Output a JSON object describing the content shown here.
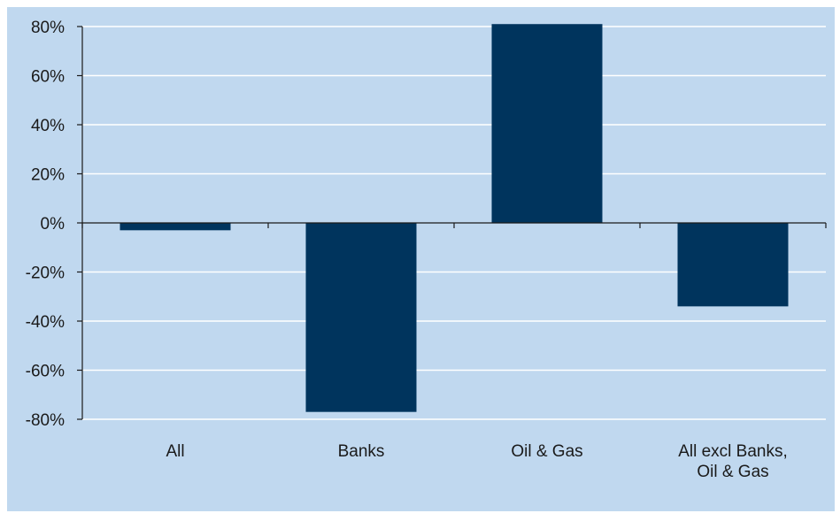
{
  "chart_data": {
    "type": "bar",
    "title": "",
    "xlabel": "",
    "ylabel": "",
    "categories": [
      [
        "All"
      ],
      [
        "Banks"
      ],
      [
        "Oil & Gas"
      ],
      [
        "All excl Banks,",
        "Oil & Gas"
      ]
    ],
    "values": [
      -3,
      -77,
      81,
      -34
    ],
    "ylim": [
      -80,
      80
    ],
    "yticks": [
      80,
      60,
      40,
      20,
      0,
      -20,
      -40,
      -60,
      -80
    ],
    "ytick_labels": [
      "80%",
      "60%",
      "40%",
      "20%",
      "0%",
      "-20%",
      "-40%",
      "-60%",
      "-80%"
    ],
    "grid": true,
    "legend": "none",
    "colors": {
      "background": "#c0d8ef",
      "bar": "#00345d",
      "grid": "#ffffff",
      "axis": "#1a1a1a"
    }
  }
}
